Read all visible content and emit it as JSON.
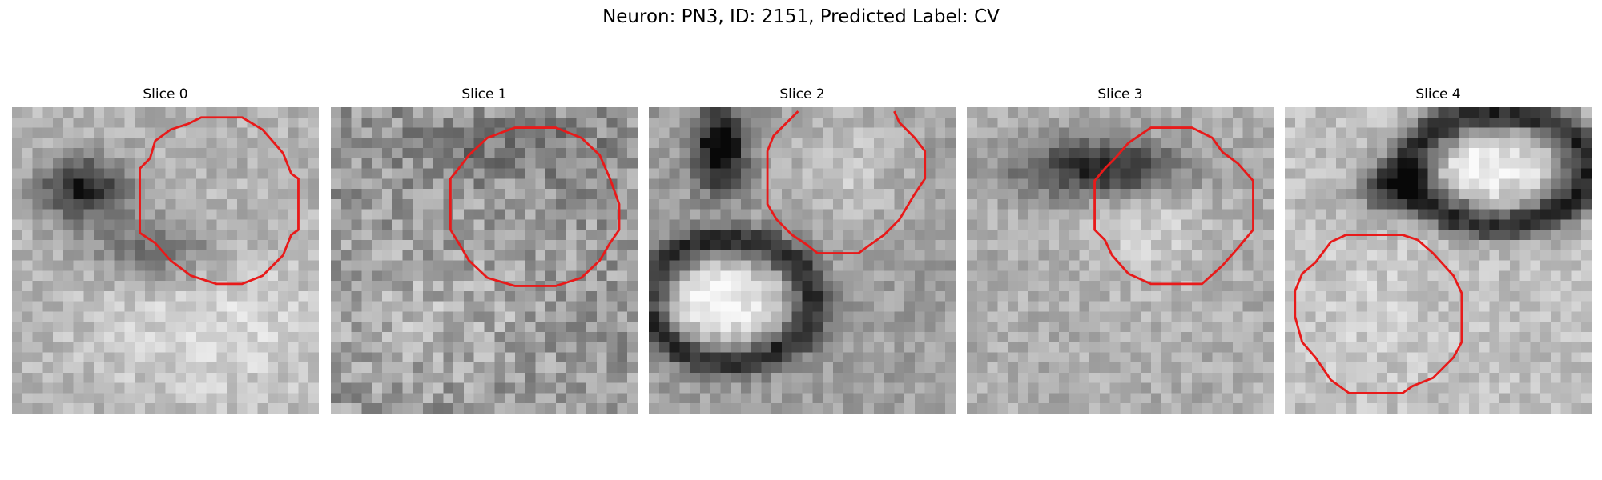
{
  "figure": {
    "title": "Neuron: PN3, ID: 2151, Predicted Label: CV"
  },
  "overlay_color": "#e81a1a",
  "slices": [
    {
      "title": "Slice 0",
      "image": "grayscale microscopy patch; dark irregular membrane at upper-left, lighter textured region below",
      "contour": "closed red 12-sided outline in upper-right"
    },
    {
      "title": "Slice 1",
      "image": "noisy grayscale patch with speckled texture",
      "contour": "closed red 12-sided outline in upper-center"
    },
    {
      "title": "Slice 2",
      "image": "grayscale patch with dark curved membrane and bright oval at lower-left",
      "contour": "red outline open at top, upper-right area"
    },
    {
      "title": "Slice 3",
      "image": "grayscale patch with dark band at top-center",
      "contour": "closed red 12-sided outline in center-right"
    },
    {
      "title": "Slice 4",
      "image": "grayscale patch with dark ring around bright oval at upper-right",
      "contour": "closed red 12-sided outline in lower-left"
    }
  ]
}
